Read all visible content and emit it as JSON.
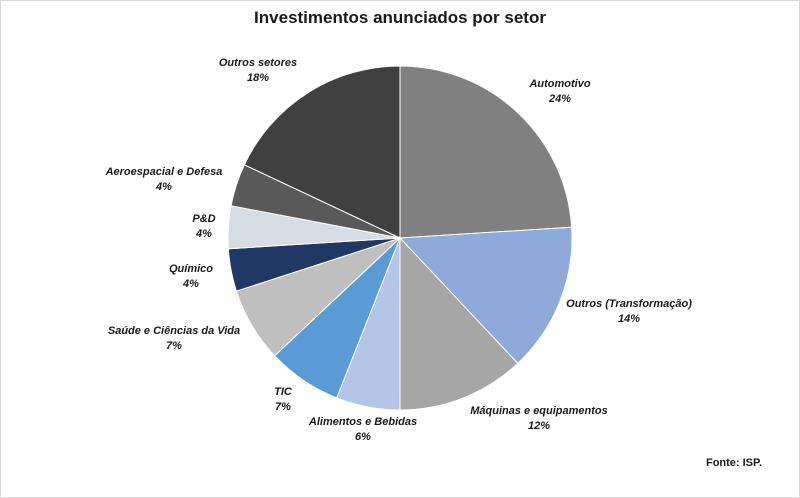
{
  "chart_data": {
    "type": "pie",
    "title": "Investimentos anunciados por setor",
    "source": "Fonte: ISP.",
    "start_angle_deg": 0,
    "direction": "clockwise",
    "slices": [
      {
        "label": "Automotivo",
        "value": 24,
        "display": "24%",
        "color": "#808080"
      },
      {
        "label": "Outros (Transformação)",
        "value": 14,
        "display": "14%",
        "color": "#8eaadb"
      },
      {
        "label": "Máquinas  e equipamentos",
        "value": 12,
        "display": "12%",
        "color": "#a6a6a6"
      },
      {
        "label": "Alimentos e Bebidas",
        "value": 6,
        "display": "6%",
        "color": "#b4c6e7"
      },
      {
        "label": "TIC",
        "value": 7,
        "display": "7%",
        "color": "#5b9bd5"
      },
      {
        "label": "Saúde e Ciências da Vida",
        "value": 7,
        "display": "7%",
        "color": "#bfbfbf"
      },
      {
        "label": "Químico",
        "value": 4,
        "display": "4%",
        "color": "#203864"
      },
      {
        "label": "P&D",
        "value": 4,
        "display": "4%",
        "color": "#d6dce4"
      },
      {
        "label": "Aeroespacial e Defesa",
        "value": 4,
        "display": "4%",
        "color": "#595959"
      },
      {
        "label": "Outros setores",
        "value": 18,
        "display": "18%",
        "color": "#404040"
      }
    ]
  }
}
